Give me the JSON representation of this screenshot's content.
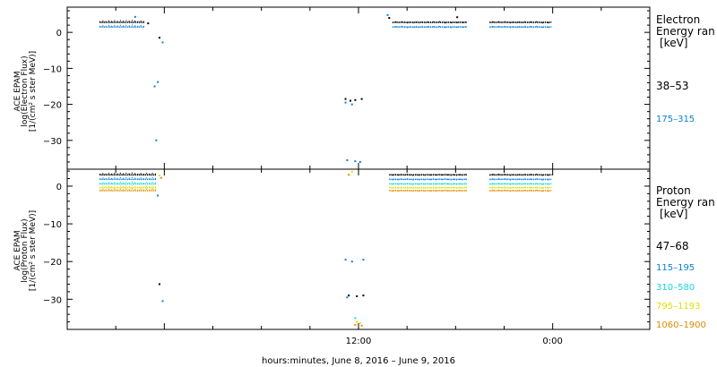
{
  "chart_data": [
    {
      "type": "scatter",
      "panel": "electron",
      "ylabel_lines": [
        "ACE EPAM",
        "log(Electron Flux)",
        "[1/(cm² s ster MeV)]"
      ],
      "legend_title": [
        "Electron",
        "Energy ran",
        "[keV]"
      ],
      "ylim": [
        -38,
        7
      ],
      "yticks": [
        0,
        -10,
        -20,
        -30
      ],
      "ytick_labels": [
        "0",
        "−10",
        "−20",
        "−30"
      ],
      "series": [
        {
          "name": "38–53",
          "color": "#000000",
          "segments": [
            {
              "x": [
                -4.0,
                -1.2
              ],
              "y": 2.8
            },
            {
              "x": [
                14.1,
                18.7
              ],
              "y": 2.8
            },
            {
              "x": [
                20.1,
                23.9
              ],
              "y": 2.8
            }
          ],
          "points": [
            {
              "x": -1.0,
              "y": 2.5
            },
            {
              "x": -0.3,
              "y": -1.5
            },
            {
              "x": 11.2,
              "y": -18.5
            },
            {
              "x": 11.5,
              "y": -19.0
            },
            {
              "x": 11.8,
              "y": -18.8
            },
            {
              "x": 12.2,
              "y": -18.5
            },
            {
              "x": 13.9,
              "y": 4.0
            },
            {
              "x": 18.1,
              "y": 4.2
            }
          ]
        },
        {
          "name": "175–315",
          "color": "#0a7fd4",
          "segments": [
            {
              "x": [
                -4.0,
                -1.2
              ],
              "y": 1.5
            },
            {
              "x": [
                14.1,
                18.7
              ],
              "y": 1.5
            },
            {
              "x": [
                20.1,
                23.9
              ],
              "y": 1.5
            }
          ],
          "points": [
            {
              "x": -1.8,
              "y": 4.3
            },
            {
              "x": -0.1,
              "y": -2.8
            },
            {
              "x": -0.6,
              "y": -15.0
            },
            {
              "x": -0.4,
              "y": -13.8
            },
            {
              "x": -0.5,
              "y": -30.0
            },
            {
              "x": 11.2,
              "y": -19.5
            },
            {
              "x": 11.6,
              "y": -20.0
            },
            {
              "x": 11.3,
              "y": -35.5
            },
            {
              "x": 11.8,
              "y": -35.8
            },
            {
              "x": 12.1,
              "y": -36.0
            },
            {
              "x": 13.8,
              "y": 4.8
            }
          ]
        }
      ]
    },
    {
      "type": "scatter",
      "panel": "proton",
      "ylabel_lines": [
        "ACE EPAM",
        "log(Proton Flux)",
        "[1/(cm² s ster MeV)]"
      ],
      "legend_title": [
        "Proton",
        "Energy ran",
        "[keV]"
      ],
      "ylim": [
        -38,
        4.5
      ],
      "yticks": [
        0,
        -10,
        -20,
        -30
      ],
      "ytick_labels": [
        "0",
        "−10",
        "−20",
        "−30"
      ],
      "xlim": [
        -6,
        30
      ],
      "xticks": [
        12,
        24
      ],
      "xtick_labels": [
        "12:00",
        "0:00"
      ],
      "xlabel": "hours:minutes, June  8, 2016 – June  9, 2016",
      "series": [
        {
          "name": "47–68",
          "color": "#000000",
          "segments": [
            {
              "x": [
                -4.0,
                -0.5
              ],
              "y": 3.0
            },
            {
              "x": [
                13.9,
                18.7
              ],
              "y": 3.0
            },
            {
              "x": [
                20.1,
                23.9
              ],
              "y": 3.0
            }
          ],
          "points": [
            {
              "x": -0.3,
              "y": -26.0
            },
            {
              "x": 11.4,
              "y": -29.0
            },
            {
              "x": 11.9,
              "y": -29.2
            },
            {
              "x": 12.3,
              "y": -29.0
            }
          ]
        },
        {
          "name": "115–195",
          "color": "#0a7fd4",
          "segments": [
            {
              "x": [
                -4.0,
                -0.5
              ],
              "y": 1.8
            },
            {
              "x": [
                13.9,
                18.7
              ],
              "y": 1.8
            },
            {
              "x": [
                20.1,
                23.9
              ],
              "y": 1.8
            }
          ],
          "points": [
            {
              "x": -0.4,
              "y": -2.5
            },
            {
              "x": -0.1,
              "y": -30.5
            },
            {
              "x": 11.2,
              "y": -19.5
            },
            {
              "x": 11.6,
              "y": -20.0
            },
            {
              "x": 12.3,
              "y": -19.5
            },
            {
              "x": 11.3,
              "y": -29.5
            }
          ]
        },
        {
          "name": "310–580",
          "color": "#18d6d6",
          "segments": [
            {
              "x": [
                -4.0,
                -0.5
              ],
              "y": 0.6
            },
            {
              "x": [
                13.9,
                18.7
              ],
              "y": 0.6
            },
            {
              "x": [
                20.1,
                23.9
              ],
              "y": 0.6
            }
          ],
          "points": [
            {
              "x": 11.8,
              "y": -35.0
            }
          ]
        },
        {
          "name": "795–1193",
          "color": "#e0e000",
          "segments": [
            {
              "x": [
                -4.0,
                -0.5
              ],
              "y": -0.4
            },
            {
              "x": [
                13.9,
                18.7
              ],
              "y": -0.4
            },
            {
              "x": [
                20.1,
                23.9
              ],
              "y": -0.4
            }
          ],
          "points": [
            {
              "x": -0.3,
              "y": 2.8
            },
            {
              "x": 11.6,
              "y": 3.8
            },
            {
              "x": 11.9,
              "y": -36.0
            },
            {
              "x": 12.1,
              "y": -36.3
            }
          ]
        },
        {
          "name": "1060–1900",
          "color": "#e08a00",
          "segments": [
            {
              "x": [
                -4.0,
                -0.5
              ],
              "y": -1.2
            },
            {
              "x": [
                13.9,
                18.7
              ],
              "y": -1.2
            },
            {
              "x": [
                20.1,
                23.9
              ],
              "y": -1.2
            }
          ],
          "points": [
            {
              "x": -0.2,
              "y": 2.2
            },
            {
              "x": 11.4,
              "y": 3.0
            },
            {
              "x": 11.8,
              "y": -36.8
            },
            {
              "x": 12.2,
              "y": -37.0
            }
          ]
        }
      ]
    }
  ]
}
